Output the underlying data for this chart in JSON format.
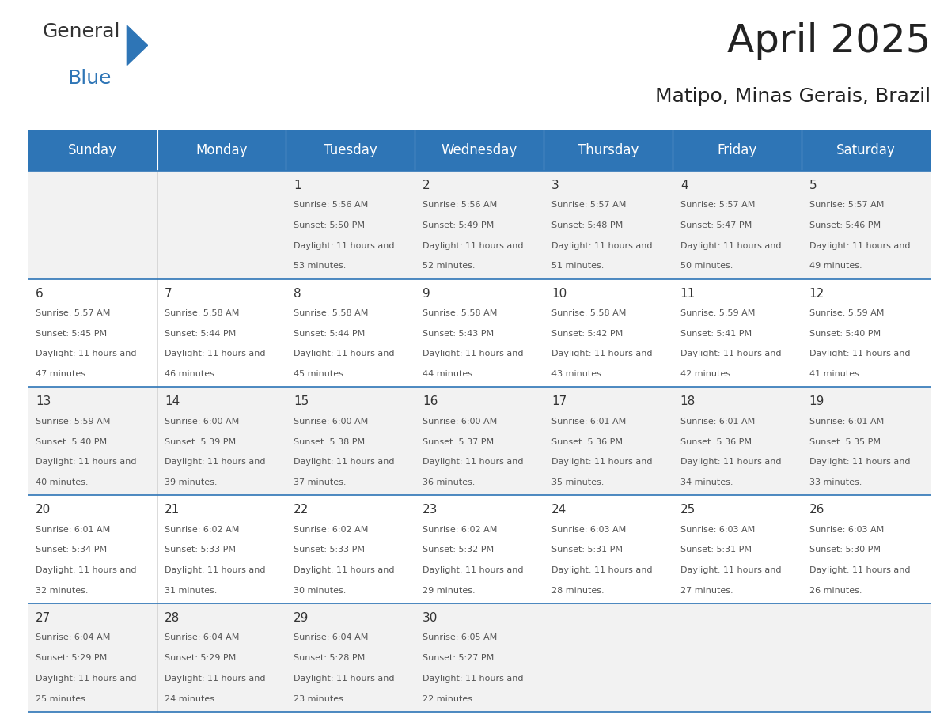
{
  "title": "April 2025",
  "subtitle": "Matipo, Minas Gerais, Brazil",
  "header_bg": "#2E75B6",
  "header_text_color": "#FFFFFF",
  "cell_bg_even": "#F2F2F2",
  "cell_bg_odd": "#FFFFFF",
  "row_line_color": "#2E75B6",
  "days_of_week": [
    "Sunday",
    "Monday",
    "Tuesday",
    "Wednesday",
    "Thursday",
    "Friday",
    "Saturday"
  ],
  "calendar": [
    [
      {
        "day": "",
        "sunrise": "",
        "sunset": "",
        "daylight": ""
      },
      {
        "day": "",
        "sunrise": "",
        "sunset": "",
        "daylight": ""
      },
      {
        "day": "1",
        "sunrise": "5:56 AM",
        "sunset": "5:50 PM",
        "daylight": "11 hours and 53 minutes."
      },
      {
        "day": "2",
        "sunrise": "5:56 AM",
        "sunset": "5:49 PM",
        "daylight": "11 hours and 52 minutes."
      },
      {
        "day": "3",
        "sunrise": "5:57 AM",
        "sunset": "5:48 PM",
        "daylight": "11 hours and 51 minutes."
      },
      {
        "day": "4",
        "sunrise": "5:57 AM",
        "sunset": "5:47 PM",
        "daylight": "11 hours and 50 minutes."
      },
      {
        "day": "5",
        "sunrise": "5:57 AM",
        "sunset": "5:46 PM",
        "daylight": "11 hours and 49 minutes."
      }
    ],
    [
      {
        "day": "6",
        "sunrise": "5:57 AM",
        "sunset": "5:45 PM",
        "daylight": "11 hours and 47 minutes."
      },
      {
        "day": "7",
        "sunrise": "5:58 AM",
        "sunset": "5:44 PM",
        "daylight": "11 hours and 46 minutes."
      },
      {
        "day": "8",
        "sunrise": "5:58 AM",
        "sunset": "5:44 PM",
        "daylight": "11 hours and 45 minutes."
      },
      {
        "day": "9",
        "sunrise": "5:58 AM",
        "sunset": "5:43 PM",
        "daylight": "11 hours and 44 minutes."
      },
      {
        "day": "10",
        "sunrise": "5:58 AM",
        "sunset": "5:42 PM",
        "daylight": "11 hours and 43 minutes."
      },
      {
        "day": "11",
        "sunrise": "5:59 AM",
        "sunset": "5:41 PM",
        "daylight": "11 hours and 42 minutes."
      },
      {
        "day": "12",
        "sunrise": "5:59 AM",
        "sunset": "5:40 PM",
        "daylight": "11 hours and 41 minutes."
      }
    ],
    [
      {
        "day": "13",
        "sunrise": "5:59 AM",
        "sunset": "5:40 PM",
        "daylight": "11 hours and 40 minutes."
      },
      {
        "day": "14",
        "sunrise": "6:00 AM",
        "sunset": "5:39 PM",
        "daylight": "11 hours and 39 minutes."
      },
      {
        "day": "15",
        "sunrise": "6:00 AM",
        "sunset": "5:38 PM",
        "daylight": "11 hours and 37 minutes."
      },
      {
        "day": "16",
        "sunrise": "6:00 AM",
        "sunset": "5:37 PM",
        "daylight": "11 hours and 36 minutes."
      },
      {
        "day": "17",
        "sunrise": "6:01 AM",
        "sunset": "5:36 PM",
        "daylight": "11 hours and 35 minutes."
      },
      {
        "day": "18",
        "sunrise": "6:01 AM",
        "sunset": "5:36 PM",
        "daylight": "11 hours and 34 minutes."
      },
      {
        "day": "19",
        "sunrise": "6:01 AM",
        "sunset": "5:35 PM",
        "daylight": "11 hours and 33 minutes."
      }
    ],
    [
      {
        "day": "20",
        "sunrise": "6:01 AM",
        "sunset": "5:34 PM",
        "daylight": "11 hours and 32 minutes."
      },
      {
        "day": "21",
        "sunrise": "6:02 AM",
        "sunset": "5:33 PM",
        "daylight": "11 hours and 31 minutes."
      },
      {
        "day": "22",
        "sunrise": "6:02 AM",
        "sunset": "5:33 PM",
        "daylight": "11 hours and 30 minutes."
      },
      {
        "day": "23",
        "sunrise": "6:02 AM",
        "sunset": "5:32 PM",
        "daylight": "11 hours and 29 minutes."
      },
      {
        "day": "24",
        "sunrise": "6:03 AM",
        "sunset": "5:31 PM",
        "daylight": "11 hours and 28 minutes."
      },
      {
        "day": "25",
        "sunrise": "6:03 AM",
        "sunset": "5:31 PM",
        "daylight": "11 hours and 27 minutes."
      },
      {
        "day": "26",
        "sunrise": "6:03 AM",
        "sunset": "5:30 PM",
        "daylight": "11 hours and 26 minutes."
      }
    ],
    [
      {
        "day": "27",
        "sunrise": "6:04 AM",
        "sunset": "5:29 PM",
        "daylight": "11 hours and 25 minutes."
      },
      {
        "day": "28",
        "sunrise": "6:04 AM",
        "sunset": "5:29 PM",
        "daylight": "11 hours and 24 minutes."
      },
      {
        "day": "29",
        "sunrise": "6:04 AM",
        "sunset": "5:28 PM",
        "daylight": "11 hours and 23 minutes."
      },
      {
        "day": "30",
        "sunrise": "6:05 AM",
        "sunset": "5:27 PM",
        "daylight": "11 hours and 22 minutes."
      },
      {
        "day": "",
        "sunrise": "",
        "sunset": "",
        "daylight": ""
      },
      {
        "day": "",
        "sunrise": "",
        "sunset": "",
        "daylight": ""
      },
      {
        "day": "",
        "sunrise": "",
        "sunset": "",
        "daylight": ""
      }
    ]
  ],
  "logo_text1": "General",
  "logo_text2": "Blue",
  "logo_color1": "#333333",
  "logo_color2": "#2E75B6"
}
